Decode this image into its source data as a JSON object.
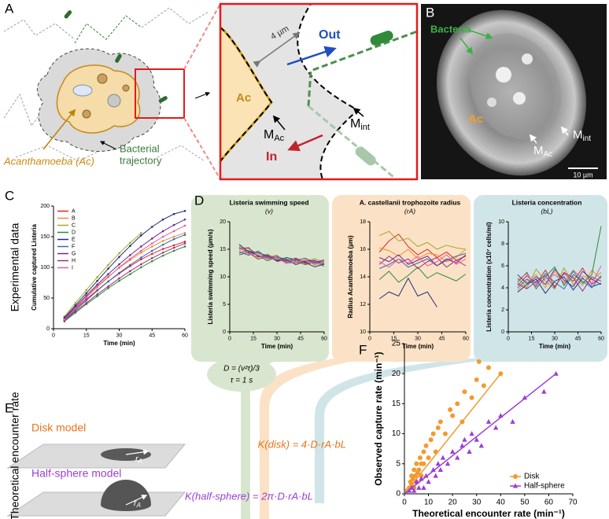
{
  "panel_labels": [
    "A",
    "B",
    "C",
    "D",
    "E",
    "F"
  ],
  "panel_a": {
    "host": "Acanthamoeba (Ac)",
    "trajectory": [
      "Bacterial",
      "trajectory"
    ],
    "distance": "4 µm",
    "ac": "Ac",
    "out": "Out",
    "in": "In",
    "m_ac": {
      "m": "M",
      "sub": "Ac"
    },
    "m_int": {
      "m": "M",
      "sub": "int"
    }
  },
  "panel_b": {
    "bacteria": "Bacteria",
    "ac": "Ac",
    "m_int": {
      "m": "M",
      "sub": "int"
    },
    "m_ac": {
      "m": "M",
      "sub": "Ac"
    },
    "scale": "10 µm"
  },
  "side_labels": [
    "Experimental data",
    "Theoretical encounter rate"
  ],
  "panel_e": {
    "disk": "Disk model",
    "half_sphere": "Half-sphere model",
    "radius": {
      "r": "r",
      "sub": "A"
    },
    "diffusion": "D = (v²τ)/3",
    "tau": "τ = 1 s",
    "k_disk": "K(disk) = 4·D·rA·bL",
    "k_half": "K(half-sphere) = 2π·D·rA·bL"
  },
  "chart_data": [
    {
      "type": "line",
      "markers": true,
      "xlabel": "Time (min)",
      "ylabel": "Cumulative captured Listeria",
      "x": [
        5,
        10,
        15,
        20,
        25,
        30,
        35,
        40,
        45,
        50,
        55,
        60
      ],
      "xlim": [
        0,
        60
      ],
      "xticks": [
        0,
        15,
        30,
        45,
        60
      ],
      "ylim": [
        0,
        200
      ],
      "yticks": [
        0,
        50,
        100,
        150,
        200
      ],
      "legend": "upper left",
      "series": [
        {
          "name": "A",
          "color": "#e3242b",
          "values": [
            15,
            32,
            48,
            63,
            77,
            90,
            102,
            113,
            122,
            130,
            136,
            142
          ]
        },
        {
          "name": "B",
          "color": "#f28e2b",
          "values": [
            17,
            36,
            53,
            70,
            85,
            99,
            112,
            124,
            134,
            143,
            150,
            156
          ]
        },
        {
          "name": "C",
          "color": "#a9a628",
          "values": [
            20,
            42,
            63,
            84,
            104,
            123,
            140,
            156,
            null,
            null,
            null,
            null
          ]
        },
        {
          "name": "D",
          "color": "#2e8b3a",
          "values": [
            12,
            26,
            40,
            53,
            66,
            78,
            89,
            100,
            110,
            119,
            127,
            134
          ]
        },
        {
          "name": "E",
          "color": "#1f2f7a",
          "values": [
            18,
            38,
            58,
            78,
            98,
            117,
            135,
            152,
            166,
            178,
            187,
            192
          ]
        },
        {
          "name": "F",
          "color": "#2f6fb5",
          "values": [
            14,
            30,
            46,
            62,
            77,
            91,
            104,
            116,
            127,
            137,
            146,
            153
          ]
        },
        {
          "name": "G",
          "color": "#6a2c91",
          "values": [
            16,
            35,
            54,
            72,
            89,
            105,
            120,
            134,
            147,
            159,
            169,
            178
          ]
        },
        {
          "name": "H",
          "color": "#a0307a",
          "values": [
            13,
            28,
            42,
            56,
            69,
            82,
            94,
            105,
            115,
            124,
            132,
            139
          ]
        },
        {
          "name": "I",
          "color": "#e75ca6",
          "values": [
            15,
            33,
            51,
            68,
            84,
            100,
            114,
            127,
            139,
            150,
            159,
            168
          ]
        }
      ]
    },
    {
      "type": "line",
      "title": "Listeria swimming speed",
      "subtitle": "(v)",
      "xlabel": "Time (min)",
      "ylabel": "Listeria swimming speed (µm/s)",
      "x": [
        6,
        12,
        18,
        24,
        30,
        36,
        42,
        48,
        54,
        60
      ],
      "xlim": [
        0,
        60
      ],
      "xticks": [
        0,
        15,
        30,
        45,
        60
      ],
      "ylim": [
        0,
        20
      ],
      "yticks": [
        0,
        5,
        10,
        15,
        20
      ],
      "series": [
        {
          "color": "#e3242b",
          "values": [
            15.2,
            14.6,
            13.8,
            13.5,
            13.1,
            12.8,
            13.4,
            12.6,
            12.9,
            12.4
          ]
        },
        {
          "color": "#f28e2b",
          "values": [
            14.8,
            15.1,
            14.2,
            13.6,
            13.9,
            12.7,
            12.5,
            13.2,
            12.1,
            12.8
          ]
        },
        {
          "color": "#a9a628",
          "values": [
            15.6,
            14.2,
            13.5,
            14.1,
            13.3,
            13.0,
            12.4,
            12.9,
            13.3,
            12.6
          ]
        },
        {
          "color": "#2e8b3a",
          "values": [
            14.3,
            14.8,
            13.9,
            12.9,
            13.6,
            13.2,
            12.8,
            12.2,
            12.7,
            11.9
          ]
        },
        {
          "color": "#1f2f7a",
          "values": [
            15.9,
            14.5,
            14.4,
            13.8,
            12.9,
            13.5,
            13.1,
            12.6,
            11.8,
            12.3
          ]
        },
        {
          "color": "#2f6fb5",
          "values": [
            14.6,
            13.9,
            14.7,
            13.4,
            13.8,
            12.6,
            13.0,
            13.4,
            12.5,
            12.9
          ]
        },
        {
          "color": "#6a2c91",
          "values": [
            15.1,
            15.3,
            13.6,
            14.0,
            12.8,
            13.1,
            12.2,
            12.8,
            13.0,
            12.2
          ]
        },
        {
          "color": "#a0307a",
          "values": [
            14.0,
            14.4,
            13.2,
            13.7,
            13.4,
            12.9,
            13.3,
            12.4,
            12.6,
            13.1
          ]
        },
        {
          "color": "#e75ca6",
          "values": [
            15.4,
            14.1,
            14.0,
            13.2,
            13.5,
            12.4,
            12.7,
            13.0,
            12.3,
            12.5
          ]
        }
      ]
    },
    {
      "type": "line",
      "title": "A. castellanii trophozoite radius",
      "subtitle": "(rA)",
      "xlabel": "Time (min)",
      "ylabel": "Radius Acanthamoeba (µm)",
      "x": [
        6,
        12,
        18,
        24,
        30,
        36,
        42,
        48,
        54,
        60
      ],
      "xlim": [
        0,
        60
      ],
      "xticks": [
        0,
        15,
        30,
        45,
        60
      ],
      "ylim": [
        10,
        18
      ],
      "yticks": [
        10,
        12,
        14,
        16,
        18
      ],
      "series": [
        {
          "color": "#e3242b",
          "values": [
            15.8,
            16.6,
            17.1,
            16.2,
            15.6,
            16.0,
            15.4,
            15.8,
            15.2,
            15.5
          ]
        },
        {
          "color": "#f28e2b",
          "values": [
            16.1,
            15.9,
            15.5,
            16.0,
            15.3,
            15.7,
            15.6,
            15.1,
            15.4,
            16.0
          ]
        },
        {
          "color": "#a9a628",
          "values": [
            17.0,
            17.3,
            16.6,
            16.8,
            16.2,
            16.5,
            16.0,
            16.3,
            16.1,
            16.0
          ]
        },
        {
          "color": "#2e8b3a",
          "values": [
            13.8,
            14.4,
            13.6,
            14.1,
            14.7,
            13.9,
            14.3,
            14.0,
            13.7,
            14.2
          ]
        },
        {
          "color": "#1f2f7a",
          "values": [
            12.4,
            12.9,
            12.6,
            13.9,
            12.6,
            12.9,
            11.8,
            null,
            null,
            null
          ]
        },
        {
          "color": "#2f6fb5",
          "values": [
            14.6,
            14.9,
            15.3,
            14.7,
            15.0,
            15.3,
            14.8,
            15.2,
            15.5,
            15.7
          ]
        },
        {
          "color": "#6a2c91",
          "values": [
            15.4,
            15.1,
            15.6,
            14.9,
            15.2,
            15.5,
            14.8,
            15.3,
            15.0,
            15.6
          ]
        },
        {
          "color": "#a0307a",
          "values": [
            14.9,
            15.5,
            15.0,
            15.3,
            14.6,
            15.1,
            15.4,
            14.7,
            15.2,
            14.8
          ]
        },
        {
          "color": "#e75ca6",
          "values": [
            15.1,
            14.7,
            15.3,
            15.0,
            15.5,
            14.8,
            15.1,
            15.6,
            14.9,
            15.3
          ]
        }
      ]
    },
    {
      "type": "line",
      "title": "Listeria concentration",
      "subtitle": "(bL)",
      "xlabel": "Time (min)",
      "ylabel": "Listeria concentration (x10⁷ cells/ml)",
      "x": [
        6,
        12,
        18,
        24,
        30,
        36,
        42,
        48,
        54,
        60
      ],
      "xlim": [
        0,
        60
      ],
      "xticks": [
        0,
        15,
        30,
        45,
        60
      ],
      "ylim": [
        0,
        10
      ],
      "yticks": [
        0,
        2,
        4,
        6,
        8,
        10
      ],
      "series": [
        {
          "color": "#e3242b",
          "values": [
            4.2,
            5.1,
            4.4,
            5.6,
            4.1,
            5.3,
            4.6,
            5.8,
            4.3,
            5.0
          ]
        },
        {
          "color": "#f28e2b",
          "values": [
            3.8,
            4.6,
            5.2,
            4.0,
            5.5,
            4.4,
            5.0,
            4.2,
            5.6,
            4.8
          ]
        },
        {
          "color": "#a9a628",
          "values": [
            4.9,
            4.0,
            5.7,
            4.6,
            3.9,
            5.8,
            4.3,
            5.1,
            4.7,
            5.4
          ]
        },
        {
          "color": "#2e8b3a",
          "values": [
            4.5,
            5.4,
            3.9,
            5.0,
            5.9,
            4.2,
            5.5,
            4.4,
            5.2,
            9.6
          ]
        },
        {
          "color": "#1f2f7a",
          "values": [
            3.6,
            4.3,
            4.8,
            3.5,
            4.6,
            5.0,
            3.8,
            4.9,
            4.1,
            4.4
          ]
        },
        {
          "color": "#2f6fb5",
          "values": [
            4.0,
            4.8,
            4.2,
            5.3,
            4.5,
            3.9,
            5.2,
            4.6,
            4.0,
            5.1
          ]
        },
        {
          "color": "#6a2c91",
          "values": [
            5.2,
            4.4,
            5.0,
            4.3,
            5.7,
            4.7,
            4.1,
            5.5,
            4.8,
            4.3
          ]
        },
        {
          "color": "#a0307a",
          "values": [
            4.4,
            3.9,
            4.6,
            5.1,
            4.0,
            5.4,
            4.9,
            3.7,
            5.0,
            4.6
          ]
        },
        {
          "color": "#e75ca6",
          "values": [
            4.7,
            5.3,
            4.1,
            4.8,
            5.2,
            4.5,
            5.6,
            4.8,
            4.4,
            6.0
          ]
        }
      ]
    },
    {
      "type": "scatter",
      "xlabel": "Theoretical encounter rate (min⁻¹)",
      "ylabel": "Observed capture rate (min⁻¹)",
      "xlim": [
        0,
        70
      ],
      "xticks": [
        0,
        10,
        20,
        30,
        40,
        50,
        60,
        70
      ],
      "ylim": [
        0,
        25
      ],
      "yticks": [
        0,
        5,
        10,
        15,
        20,
        25
      ],
      "legend": "lower right",
      "series": [
        {
          "name": "Disk",
          "color": "#f39a2e",
          "marker": "circle",
          "x": [
            1,
            2,
            2.5,
            3,
            3,
            3.5,
            4,
            4,
            4.5,
            5,
            5,
            5.5,
            6,
            6.5,
            7,
            7,
            8,
            8,
            9,
            10,
            11,
            12,
            13,
            14,
            15,
            17,
            19,
            20,
            22,
            24,
            25,
            28,
            30,
            31,
            33,
            35,
            40
          ],
          "values": [
            0.5,
            1,
            2,
            1.5,
            3,
            2.5,
            1,
            4,
            3,
            2,
            5,
            3.5,
            4,
            6,
            5,
            3,
            7,
            5,
            8,
            6,
            9,
            10,
            7,
            11,
            12,
            10,
            14,
            13,
            15,
            12,
            17,
            16,
            19,
            22,
            18,
            21,
            20
          ],
          "fit": {
            "x": [
              0,
              40
            ],
            "values": [
              0,
              20
            ]
          }
        },
        {
          "name": "Half-sphere",
          "color": "#9b3fd6",
          "marker": "triangle",
          "x": [
            2,
            3,
            4,
            5,
            6,
            7,
            8,
            9,
            10,
            12,
            13,
            14,
            15,
            16,
            18,
            20,
            22,
            24,
            25,
            27,
            28,
            30,
            32,
            35,
            38,
            40,
            45,
            50,
            58,
            63
          ],
          "values": [
            0.5,
            1,
            0.5,
            2,
            1,
            2.5,
            1,
            3,
            2,
            4,
            3,
            5,
            4,
            6,
            5,
            7,
            6,
            8,
            9,
            7,
            10,
            9,
            8,
            12,
            11,
            13,
            12,
            16,
            17,
            20
          ],
          "fit": {
            "x": [
              0,
              63
            ],
            "values": [
              0,
              20
            ]
          }
        }
      ]
    }
  ]
}
